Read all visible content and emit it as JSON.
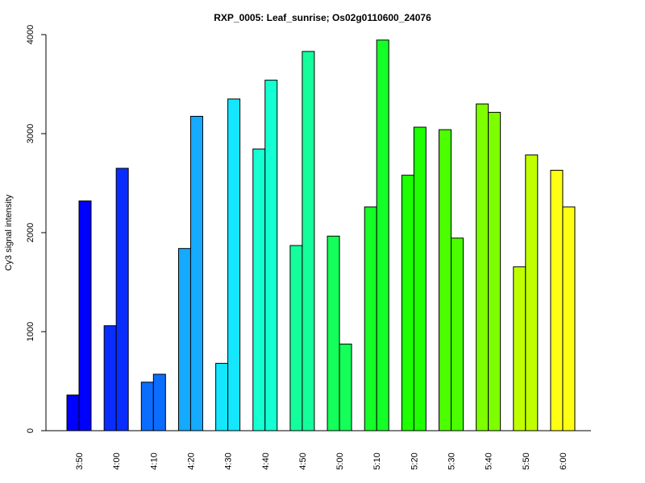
{
  "chart_data": {
    "type": "bar",
    "title": "RXP_0005: Leaf_sunrise; Os02g0110600_24076",
    "xlabel": "",
    "ylabel": "Cy3 signal intensity",
    "ylim": [
      0,
      4000
    ],
    "yticks": [
      0,
      1000,
      2000,
      3000,
      4000
    ],
    "grid": false,
    "legend": "none",
    "categories": [
      "3:50",
      "4:00",
      "4:10",
      "4:20",
      "4:30",
      "4:40",
      "4:50",
      "5:00",
      "5:10",
      "5:20",
      "5:30",
      "5:40",
      "5:50",
      "6:00"
    ],
    "colors": [
      "#0000ff",
      "#0a2dff",
      "#0b6dff",
      "#14aaff",
      "#14e6ff",
      "#14ffd2",
      "#14ff9b",
      "#14ff5a",
      "#14ff28",
      "#1eff00",
      "#4bff00",
      "#7dff00",
      "#bfff00",
      "#ffff14"
    ],
    "series": [
      {
        "values": [
          360,
          1060,
          490,
          1840,
          680,
          2845,
          1870,
          1965,
          2260,
          2580,
          3040,
          3300,
          1655,
          2630
        ]
      },
      {
        "values": [
          2320,
          2650,
          570,
          3175,
          3350,
          3540,
          3830,
          875,
          3945,
          3065,
          1945,
          3215,
          2785,
          2260
        ]
      }
    ]
  }
}
